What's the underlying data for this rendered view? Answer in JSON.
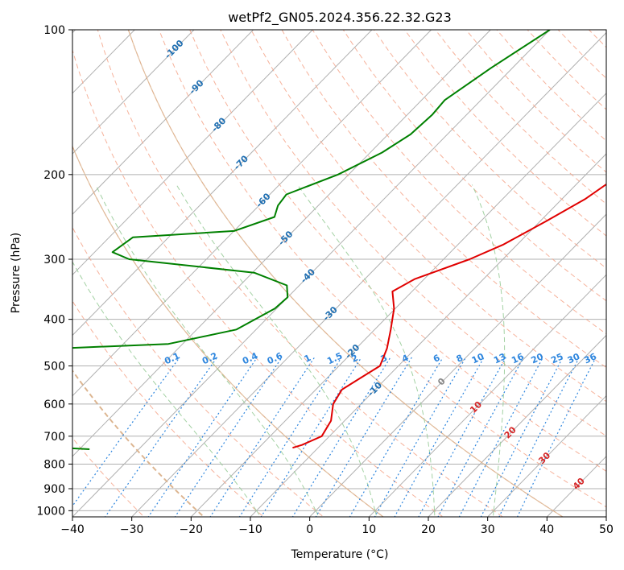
{
  "chart_data": {
    "type": "line",
    "subtype": "skew-T log-P",
    "title": "wetPf2_GN05.2024.356.22.32.G23",
    "xlabel": "Temperature (°C)",
    "ylabel": "Pressure (hPa)",
    "xlim": [
      -40,
      50
    ],
    "ylim": [
      1030,
      100
    ],
    "y_scale": "log",
    "x_ticks": [
      "−40",
      "−30",
      "−20",
      "−10",
      "0",
      "10",
      "20",
      "30",
      "40",
      "50"
    ],
    "y_ticks": [
      "100",
      "200",
      "300",
      "400",
      "500",
      "600",
      "700",
      "800",
      "900",
      "1000"
    ],
    "grid": true,
    "series": [
      {
        "key": "temperature",
        "color": "#e00000",
        "points": [
          [
            0.0,
            100
          ],
          [
            -0.9,
            110
          ],
          [
            -1.6,
            120
          ],
          [
            -1.8,
            135
          ],
          [
            -1.6,
            150
          ],
          [
            -3.9,
            165
          ],
          [
            -3.4,
            185
          ],
          [
            -4.2,
            200
          ],
          [
            -6.1,
            225
          ],
          [
            -9.0,
            250
          ],
          [
            -12.4,
            280
          ],
          [
            -15.6,
            300
          ],
          [
            -21.6,
            330
          ],
          [
            -23.3,
            350
          ],
          [
            -20.2,
            380
          ],
          [
            -17.3,
            420
          ],
          [
            -14.8,
            460
          ],
          [
            -13.1,
            500
          ],
          [
            -14.4,
            530
          ],
          [
            -15.6,
            560
          ],
          [
            -14.7,
            600
          ],
          [
            -12.3,
            650
          ],
          [
            -11.3,
            700
          ],
          [
            -13.2,
            730
          ],
          [
            -14.3,
            740
          ]
        ]
      },
      {
        "key": "dewpoint",
        "color": "#008000",
        "points": [
          [
            -40.0,
            100
          ],
          [
            -43.6,
            120
          ],
          [
            -44.9,
            130
          ],
          [
            -46.1,
            140
          ],
          [
            -45.8,
            150
          ],
          [
            -46.2,
            165
          ],
          [
            -48.0,
            180
          ],
          [
            -51.8,
            200
          ],
          [
            -57.2,
            220
          ],
          [
            -56.8,
            232
          ],
          [
            -55.5,
            245
          ],
          [
            -60.0,
            262
          ],
          [
            -76.0,
            270
          ],
          [
            -77.0,
            290
          ],
          [
            -73.0,
            300
          ],
          [
            -49.7,
            320
          ],
          [
            -42.1,
            340
          ],
          [
            -40.0,
            360
          ],
          [
            -40.3,
            380
          ],
          [
            -43.3,
            420
          ],
          [
            -52.4,
            450
          ],
          [
            -88.3,
            470
          ],
          [
            -92.0,
            560
          ],
          [
            -81.2,
            570
          ],
          [
            -91.7,
            590
          ],
          [
            -76.1,
            620
          ],
          [
            -64.4,
            650
          ],
          [
            -67.9,
            680
          ],
          [
            -70.4,
            700
          ],
          [
            -73.2,
            720
          ],
          [
            -48.3,
            745
          ]
        ]
      }
    ],
    "dry_adiabat_labels": [
      "-100",
      "-90",
      "-80",
      "-70",
      "-60",
      "-50",
      "-40",
      "-30",
      "-20",
      "-10",
      "0",
      "10",
      "20",
      "30",
      "40"
    ],
    "mixing_ratio_labels": [
      "0.1",
      "0.2",
      "0.4",
      "0.6",
      "1",
      "1.5",
      "2",
      "3",
      "4",
      "6",
      "8",
      "10",
      "13",
      "16",
      "20",
      "25",
      "30",
      "36"
    ],
    "colors": {
      "isotherm": "#b0b0b0",
      "dry_adiabat": "#f4a58a",
      "moist_adiabat": "#99cc99",
      "mixing_ratio": "#2e86de",
      "cold_label": "#1f6fb2",
      "warm_label": "#d62728",
      "zero_label": "#888888",
      "dry_line": "#d9b38c"
    }
  }
}
